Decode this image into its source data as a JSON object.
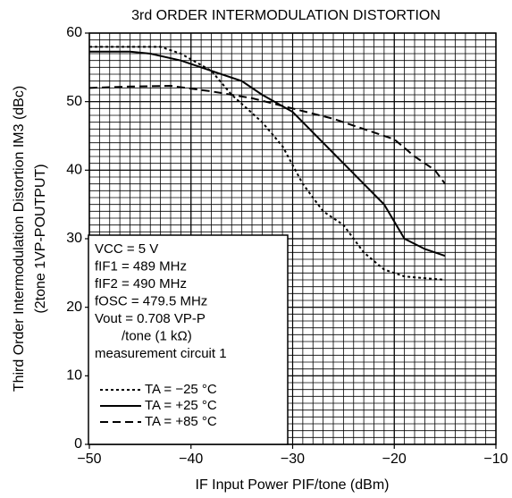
{
  "chart_data": {
    "type": "line",
    "title": "3rd ORDER INTERMODULATION DISTORTION",
    "y_label": "Third Order Intermodulation Distortion IM3 (dBc)",
    "y_label_2": "(2tone 1VP-POUTPUT)",
    "x_label": "IF Input Power PIF/tone (dBm)",
    "xlim": [
      -50,
      -10
    ],
    "xticks": [
      {
        "value": -50,
        "label": "−50"
      },
      {
        "value": -40,
        "label": "−40"
      },
      {
        "value": -30,
        "label": "−30"
      },
      {
        "value": -20,
        "label": "−20"
      },
      {
        "value": -10,
        "label": "−10"
      }
    ],
    "ylim": [
      0,
      60
    ],
    "yticks": [
      0,
      10,
      20,
      30,
      40,
      50,
      60
    ],
    "grid": true,
    "minor_grid_step_x": 1,
    "minor_grid_step_y": 1,
    "conditions": [
      "VCC = 5 V",
      "fIF1 = 489 MHz",
      "fIF2 = 490 MHz",
      "fOSC = 479.5 MHz",
      "Vout = 0.708 VP-P",
      "/tone (1 kΩ)",
      "measurement circuit 1"
    ],
    "series": [
      {
        "name": "TA = −25 °C",
        "color": "#000000",
        "dash": "3,3",
        "x": [
          -50,
          -43,
          -41,
          -38,
          -36,
          -33,
          -31,
          -29,
          -27,
          -25,
          -23,
          -21,
          -19,
          -15
        ],
        "values": [
          58,
          58,
          57,
          54.5,
          51,
          47,
          43.5,
          38,
          34,
          32,
          28,
          25.5,
          24.5,
          24
        ]
      },
      {
        "name": "TA = +25 °C",
        "color": "#000000",
        "dash": "none",
        "x": [
          -50,
          -46,
          -44,
          -41,
          -38,
          -35,
          -33,
          -30,
          -27,
          -24,
          -21,
          -19,
          -17,
          -15
        ],
        "values": [
          57.3,
          57.3,
          57,
          56,
          54.5,
          53,
          51,
          48.5,
          44,
          39.5,
          35,
          30,
          28.5,
          27.5
        ]
      },
      {
        "name": "TA = +85 °C",
        "color": "#000000",
        "dash": "9,5",
        "x": [
          -50,
          -46,
          -42,
          -38,
          -34,
          -30,
          -26,
          -23,
          -20,
          -18,
          -16,
          -15
        ],
        "values": [
          52,
          52.2,
          52.3,
          51.5,
          50.5,
          49,
          47.5,
          46,
          44.5,
          42,
          40,
          38
        ]
      }
    ]
  }
}
